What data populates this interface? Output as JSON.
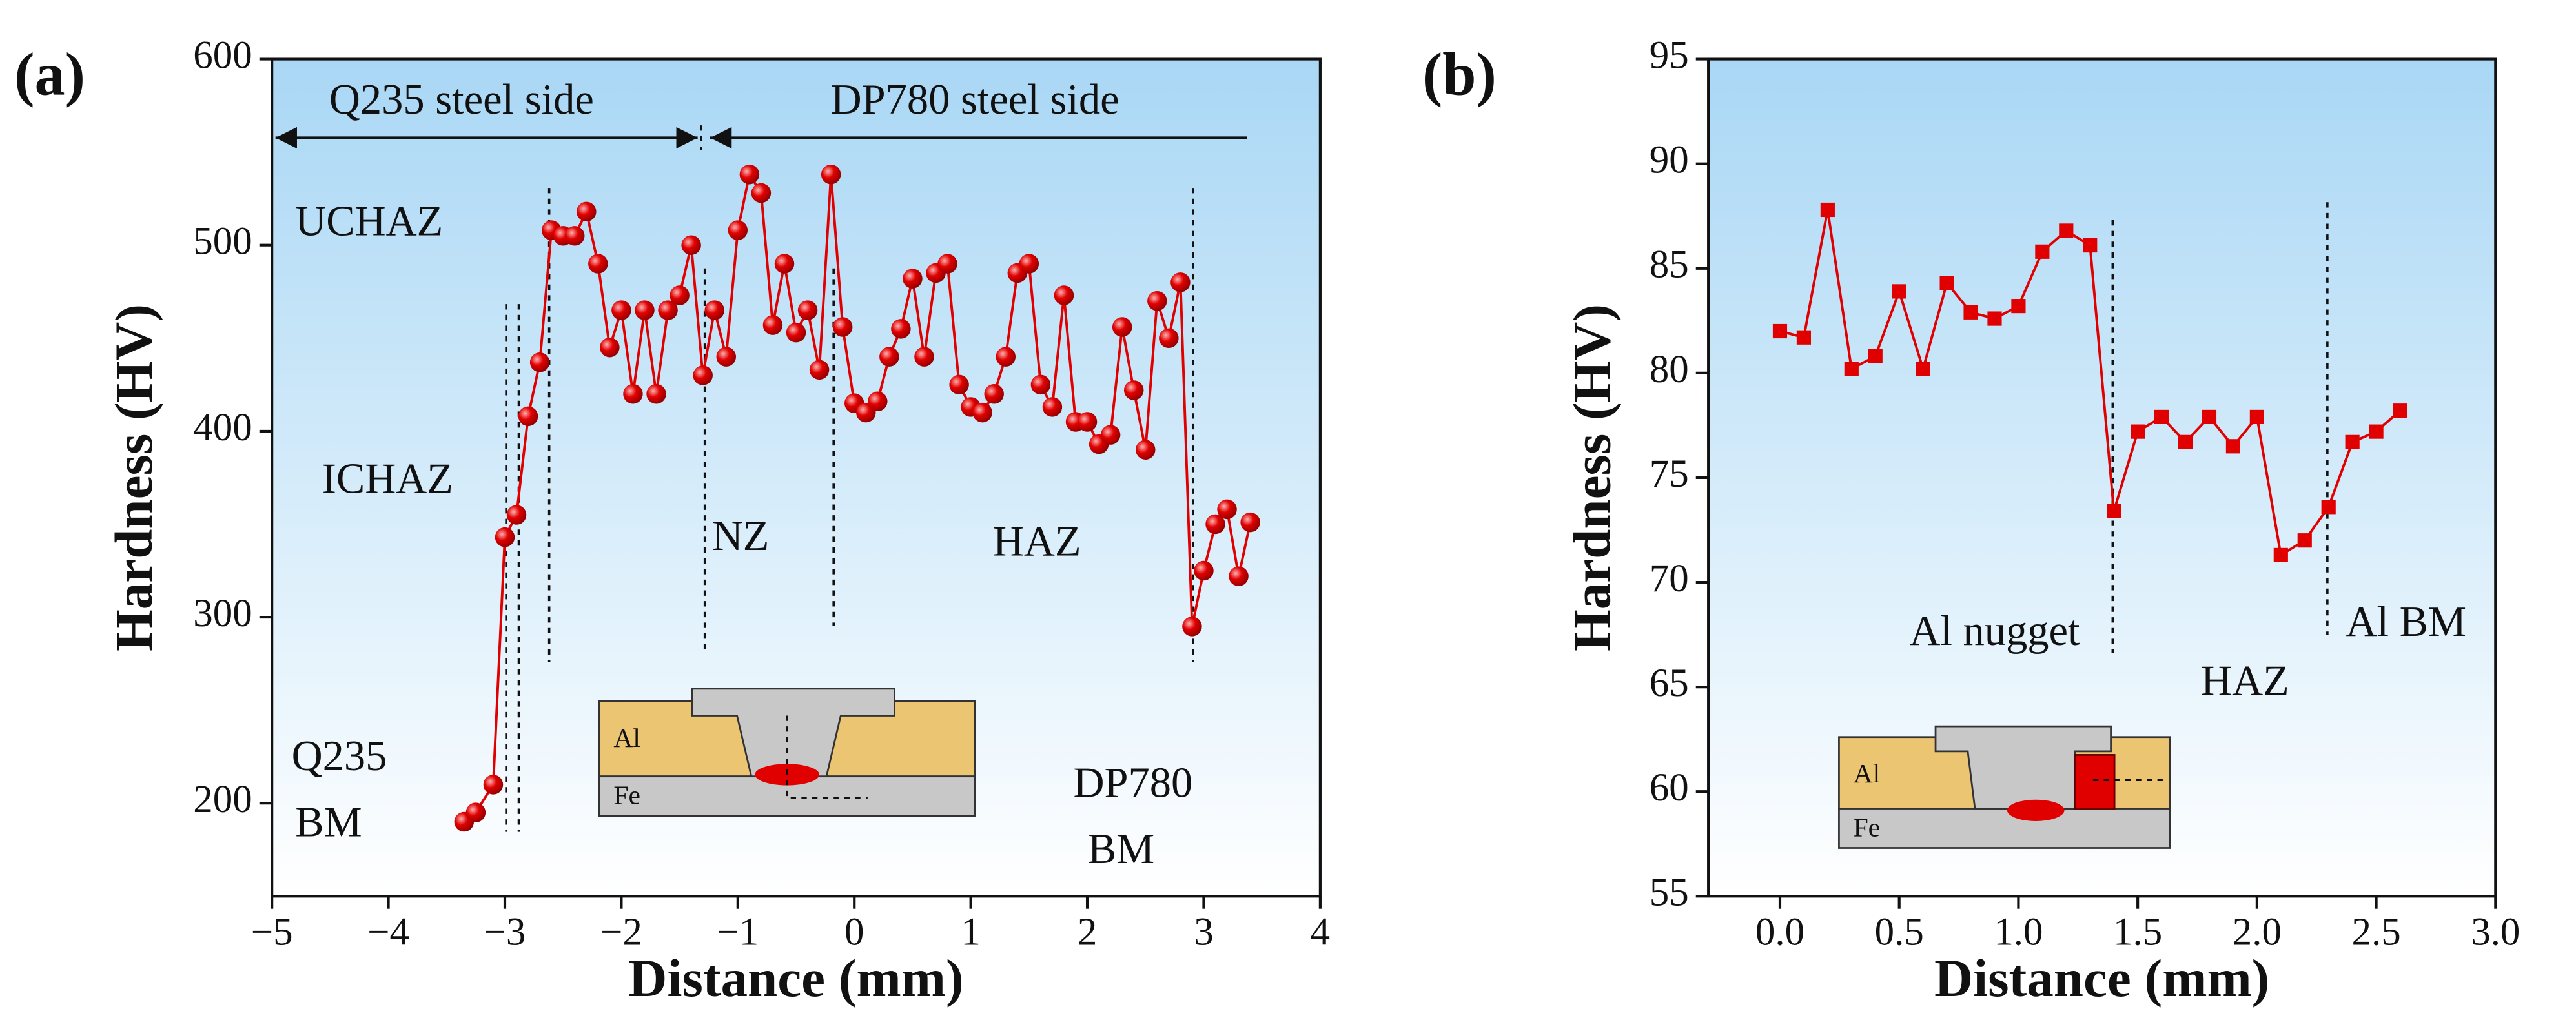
{
  "chart_data": [
    {
      "type": "line",
      "panel_label": "(a)",
      "marker": "sphere",
      "color": "#e00000",
      "xlabel": "Distance (mm)",
      "ylabel": "Hardness (HV)",
      "xlim": [
        -5,
        4
      ],
      "ylim": [
        150,
        600
      ],
      "xticks": [
        {
          "value": -5,
          "label": "−5"
        },
        {
          "value": -4,
          "label": "−4"
        },
        {
          "value": -3,
          "label": "−3"
        },
        {
          "value": -2,
          "label": "−2"
        },
        {
          "value": -1,
          "label": "−1"
        },
        0,
        1,
        2,
        3,
        4
      ],
      "yticks": [
        200,
        300,
        400,
        500,
        600
      ],
      "x": [
        -3.35,
        -3.25,
        -3.1,
        -3.0,
        -2.9,
        -2.8,
        -2.7,
        -2.6,
        -2.5,
        -2.4,
        -2.3,
        -2.2,
        -2.1,
        -2.0,
        -1.9,
        -1.8,
        -1.7,
        -1.6,
        -1.5,
        -1.4,
        -1.3,
        -1.2,
        -1.1,
        -1.0,
        -0.9,
        -0.8,
        -0.7,
        -0.6,
        -0.5,
        -0.4,
        -0.3,
        -0.2,
        -0.1,
        0.0,
        0.1,
        0.2,
        0.3,
        0.4,
        0.5,
        0.6,
        0.7,
        0.8,
        0.9,
        1.0,
        1.1,
        1.2,
        1.3,
        1.4,
        1.5,
        1.6,
        1.7,
        1.8,
        1.9,
        2.0,
        2.1,
        2.2,
        2.3,
        2.4,
        2.5,
        2.6,
        2.7,
        2.8,
        2.9,
        3.0,
        3.1,
        3.2,
        3.3,
        3.4
      ],
      "values": [
        190,
        195,
        210,
        343,
        355,
        408,
        437,
        508,
        505,
        505,
        518,
        490,
        445,
        465,
        420,
        465,
        420,
        465,
        473,
        500,
        430,
        465,
        440,
        508,
        538,
        528,
        457,
        490,
        453,
        465,
        433,
        538,
        456,
        415,
        410,
        416,
        440,
        455,
        482,
        440,
        485,
        490,
        425,
        413,
        410,
        420,
        440,
        485,
        490,
        425,
        413,
        473,
        405,
        405,
        393,
        398,
        456,
        422,
        390,
        470,
        450,
        480,
        295,
        325,
        350,
        358,
        322,
        351
      ],
      "annotations": [
        "Q235 steel side",
        "DP780 steel side",
        "UCHAZ",
        "ICHAZ",
        "NZ",
        "HAZ",
        "Q235",
        "BM",
        "DP780",
        "BM",
        "Al",
        "Fe"
      ]
    },
    {
      "type": "line",
      "panel_label": "(b)",
      "marker": "square",
      "color": "#e00000",
      "xlabel": "Distance (mm)",
      "ylabel": "Hardness (HV)",
      "xlim": [
        -0.3,
        3.0
      ],
      "ylim": [
        55,
        95
      ],
      "xticks": [
        {
          "value": 0,
          "label": "0.0"
        },
        {
          "value": 0.5,
          "label": "0.5"
        },
        {
          "value": 1,
          "label": "1.0"
        },
        {
          "value": 1.5,
          "label": "1.5"
        },
        {
          "value": 2,
          "label": "2.0"
        },
        {
          "value": 2.5,
          "label": "2.5"
        },
        {
          "value": 3,
          "label": "3.0"
        }
      ],
      "yticks": [
        55,
        60,
        65,
        70,
        75,
        80,
        85,
        90,
        95
      ],
      "x": [
        0.0,
        0.1,
        0.2,
        0.3,
        0.4,
        0.5,
        0.6,
        0.7,
        0.8,
        0.9,
        1.0,
        1.1,
        1.2,
        1.3,
        1.4,
        1.5,
        1.6,
        1.7,
        1.8,
        1.9,
        2.0,
        2.1,
        2.2,
        2.3,
        2.4,
        2.5,
        2.6
      ],
      "values": [
        82,
        81.7,
        87.8,
        80.2,
        80.8,
        83.9,
        80.2,
        84.3,
        82.9,
        82.6,
        83.2,
        85.8,
        86.8,
        86.1,
        73.4,
        77.2,
        77.9,
        76.7,
        77.9,
        76.5,
        77.9,
        71.3,
        72,
        73.6,
        76.7,
        77.2,
        78.2
      ],
      "annotations": [
        "Al nugget",
        "HAZ",
        "Al BM",
        "Al",
        "Fe"
      ]
    }
  ]
}
